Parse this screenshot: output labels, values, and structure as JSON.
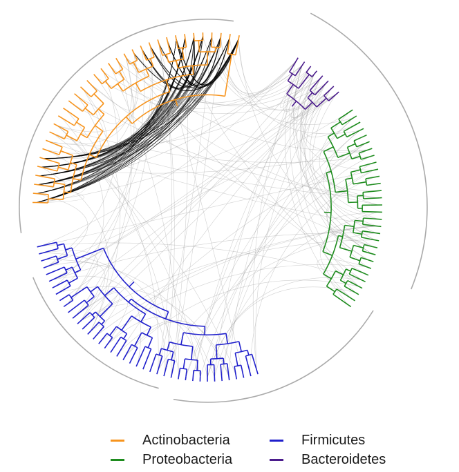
{
  "legend": {
    "items": [
      {
        "label": "Actinobacteria",
        "color": "#F7941D"
      },
      {
        "label": "Firmicutes",
        "color": "#1F1FCC"
      },
      {
        "label": "Proteobacteria",
        "color": "#1E8C1E"
      },
      {
        "label": "Bacteroidetes",
        "color": "#4B1C8C"
      }
    ]
  },
  "colors": {
    "outer_arc": "#aaaaaa",
    "interaction_dark": "#000000",
    "interaction_light": "#999999"
  }
}
